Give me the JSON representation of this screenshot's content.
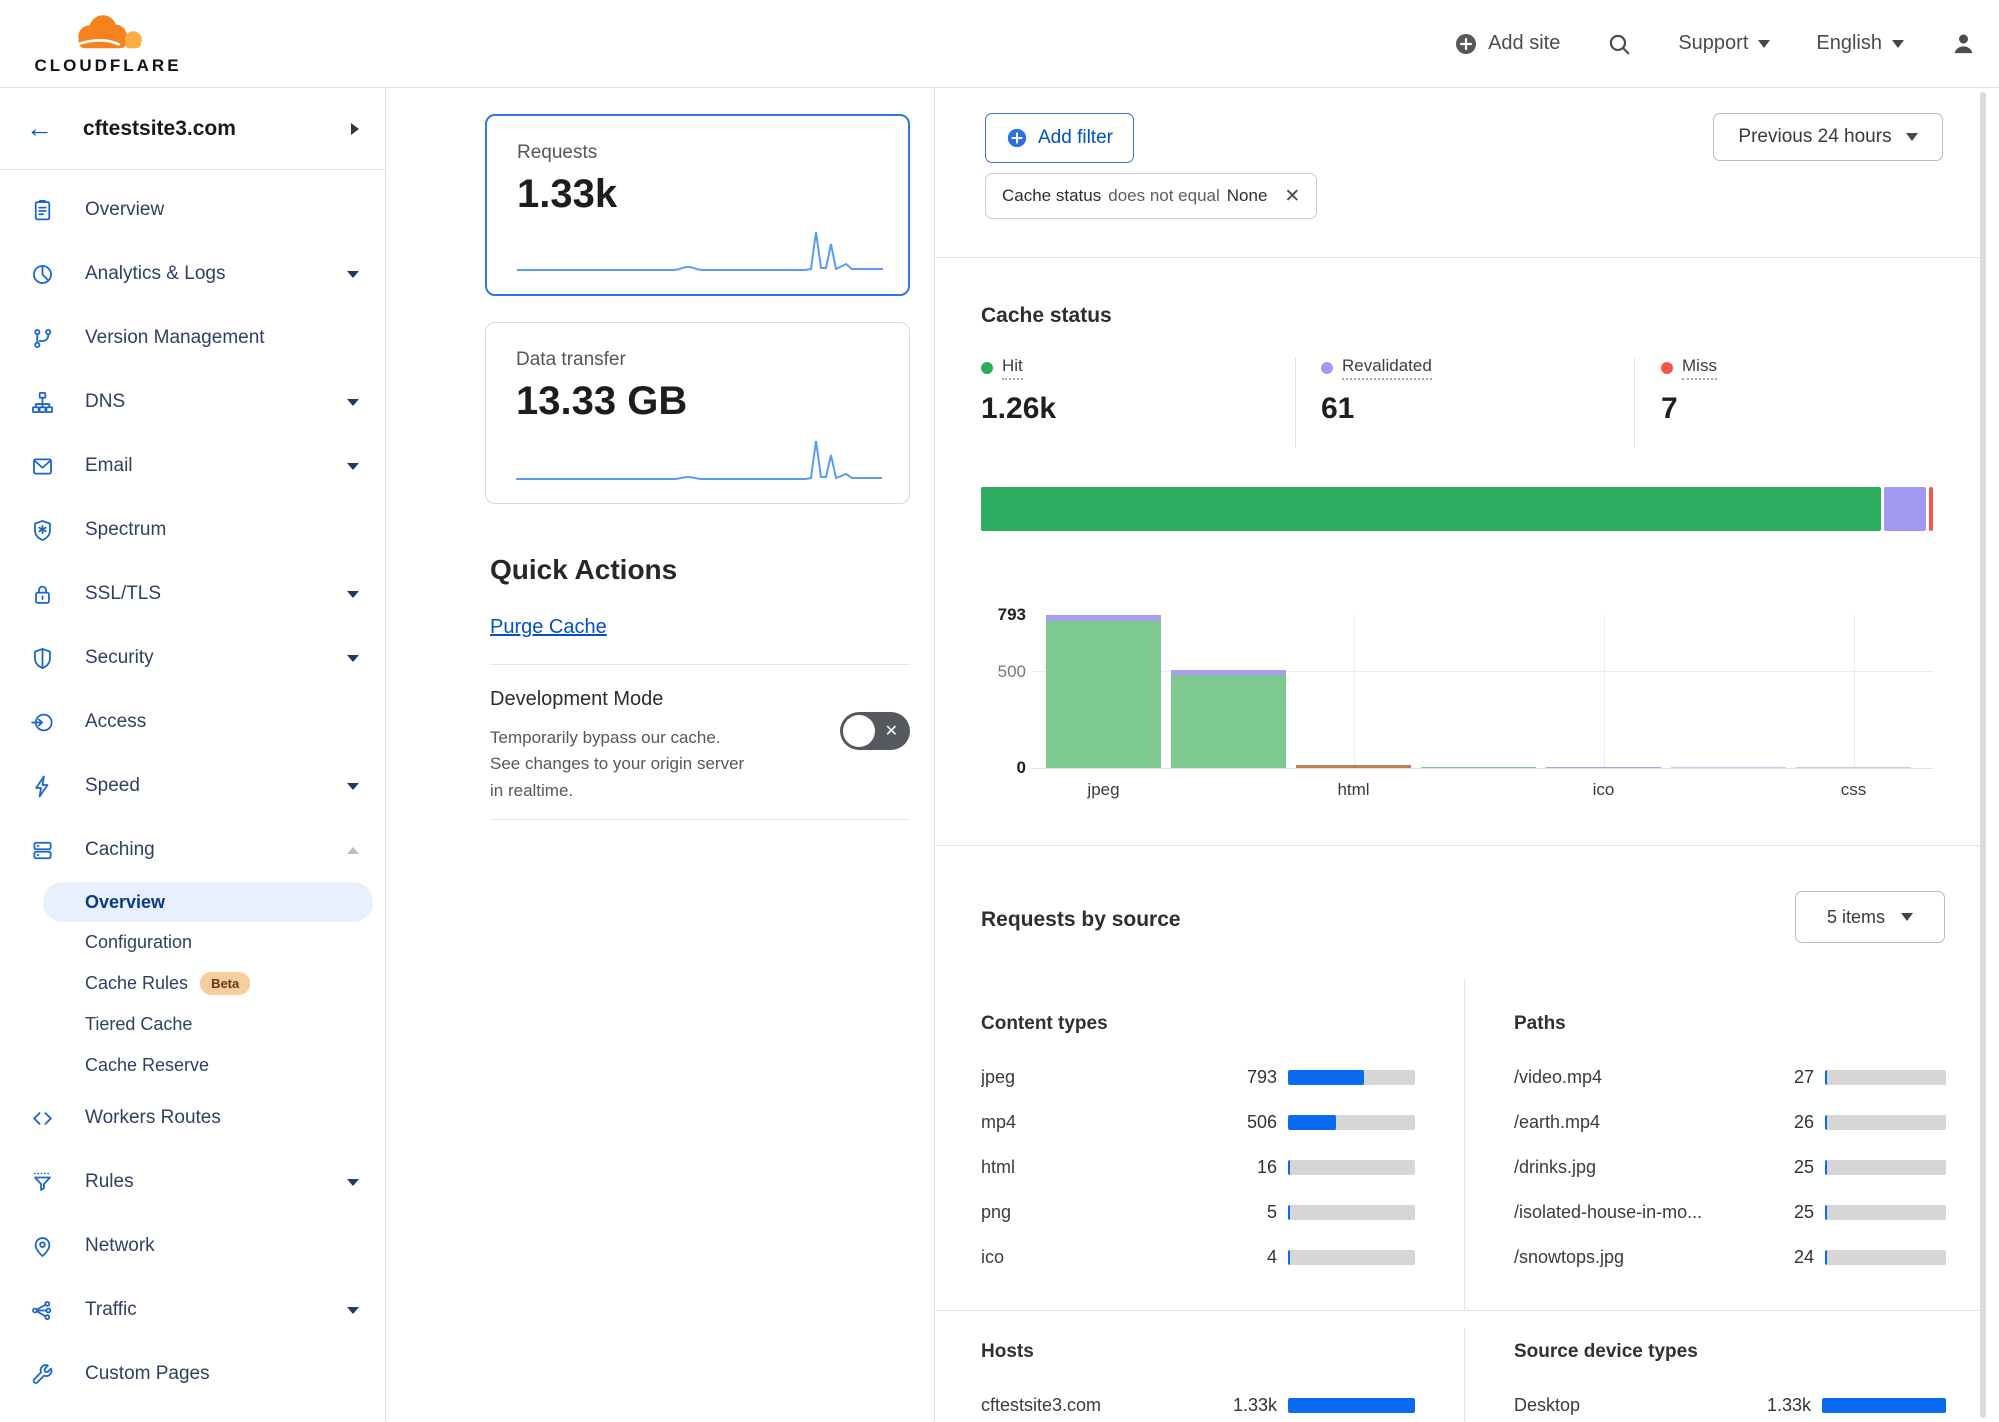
{
  "colors": {
    "accent_blue": "#0051c3",
    "bar_blue": "#0b6bf0",
    "hit_green": "#2dab5e",
    "revalidated_purple": "#a29af0",
    "miss_red": "#f5564a",
    "chart_green": "#7dc98f",
    "chart_purple": "#a79ef0",
    "chart_brown": "#b5835a",
    "brand_orange": "#f6821f"
  },
  "topbar": {
    "logo": "CLOUDFLARE",
    "add_site": "Add site",
    "support": "Support",
    "language": "English"
  },
  "sidebar": {
    "site": "cftestsite3.com",
    "items": [
      {
        "label": "Overview",
        "icon": "overview"
      },
      {
        "label": "Analytics & Logs",
        "icon": "analytics",
        "caret": "down"
      },
      {
        "label": "Version Management",
        "icon": "version"
      },
      {
        "label": "DNS",
        "icon": "dns",
        "caret": "down"
      },
      {
        "label": "Email",
        "icon": "email",
        "caret": "down"
      },
      {
        "label": "Spectrum",
        "icon": "spectrum"
      },
      {
        "label": "SSL/TLS",
        "icon": "ssl",
        "caret": "down"
      },
      {
        "label": "Security",
        "icon": "security",
        "caret": "down"
      },
      {
        "label": "Access",
        "icon": "access"
      },
      {
        "label": "Speed",
        "icon": "speed",
        "caret": "down"
      },
      {
        "label": "Caching",
        "icon": "caching",
        "caret": "up",
        "children": [
          {
            "label": "Overview",
            "selected": true
          },
          {
            "label": "Configuration"
          },
          {
            "label": "Cache Rules",
            "badge": "Beta"
          },
          {
            "label": "Tiered Cache"
          },
          {
            "label": "Cache Reserve"
          }
        ]
      },
      {
        "label": "Workers Routes",
        "icon": "workers"
      },
      {
        "label": "Rules",
        "icon": "rules",
        "caret": "down"
      },
      {
        "label": "Network",
        "icon": "network"
      },
      {
        "label": "Traffic",
        "icon": "traffic",
        "caret": "down"
      },
      {
        "label": "Custom Pages",
        "icon": "custom"
      }
    ]
  },
  "cards": {
    "requests": {
      "label": "Requests",
      "value": "1.33k"
    },
    "data_transfer": {
      "label": "Data transfer",
      "value": "13.33 GB"
    }
  },
  "quick_actions": {
    "title": "Quick Actions",
    "purge_cache": "Purge Cache",
    "dev_mode_title": "Development Mode",
    "dev_mode_desc": "Temporarily bypass our cache. See changes to your origin server in realtime."
  },
  "filter_bar": {
    "add_filter": "Add filter",
    "chip_field": "Cache status",
    "chip_operator": "does not equal",
    "chip_value": "None",
    "time_range": "Previous 24 hours"
  },
  "cache_status": {
    "title": "Cache status",
    "stats": [
      {
        "label": "Hit",
        "value": "1.26k",
        "color": "#2dab5e"
      },
      {
        "label": "Revalidated",
        "value": "61",
        "color": "#a29af0"
      },
      {
        "label": "Miss",
        "value": "7",
        "color": "#f5564a"
      }
    ]
  },
  "chart_data": [
    {
      "type": "bar",
      "subtype": "horizontal-stacked-single",
      "title": "Cache status totals",
      "total": 1328,
      "segments": [
        {
          "name": "Hit",
          "value": 1260,
          "display": "1.26k",
          "color": "#2dab5e"
        },
        {
          "name": "Revalidated",
          "value": 61,
          "display": "61",
          "color": "#a29af0"
        },
        {
          "name": "Miss",
          "value": 7,
          "display": "7",
          "color": "#f5564a"
        }
      ]
    },
    {
      "type": "bar",
      "subtype": "vertical-stacked",
      "title": "Cache status by content type",
      "ylim": [
        0,
        793
      ],
      "yticks": [
        {
          "label": "793",
          "value": 793
        },
        {
          "label": "500",
          "value": 500
        },
        {
          "label": "0",
          "value": 0
        }
      ],
      "grid": true,
      "x_tick_labels": [
        "jpeg",
        "html",
        "ico",
        "css"
      ],
      "bars": [
        {
          "category": "jpeg",
          "label_visible": true,
          "segments": [
            {
              "status": "Hit",
              "value": 760,
              "color": "#7dc98f"
            },
            {
              "status": "Revalidated",
              "value": 33,
              "color": "#a79ef0"
            }
          ]
        },
        {
          "category": "mp4",
          "label_visible": false,
          "segments": [
            {
              "status": "Hit",
              "value": 480,
              "color": "#7dc98f"
            },
            {
              "status": "Revalidated",
              "value": 26,
              "color": "#a79ef0"
            }
          ]
        },
        {
          "category": "html",
          "label_visible": true,
          "segments": [
            {
              "status": "Other",
              "value": 16,
              "color": "#b5835a"
            }
          ]
        },
        {
          "category": "png",
          "label_visible": false,
          "segments": [
            {
              "status": "Hit",
              "value": 5,
              "color": "#7dc98f"
            }
          ]
        },
        {
          "category": "ico",
          "label_visible": true,
          "segments": [
            {
              "status": "Revalidated",
              "value": 4,
              "color": "#a9a2ec"
            }
          ]
        },
        {
          "category": "other",
          "label_visible": false,
          "segments": [
            {
              "status": "Other",
              "value": 2,
              "color": "#bcd0ea"
            }
          ]
        },
        {
          "category": "css",
          "label_visible": true,
          "segments": [
            {
              "status": "Other",
              "value": 1,
              "color": "#cccccc"
            }
          ]
        }
      ]
    }
  ],
  "requests_by_source": {
    "title": "Requests by source",
    "items_label": "5 items",
    "content_types": {
      "title": "Content types",
      "rows": [
        {
          "label": "jpeg",
          "value": "793",
          "pct": 59.6
        },
        {
          "label": "mp4",
          "value": "506",
          "pct": 38.0
        },
        {
          "label": "html",
          "value": "16",
          "pct": 1.2
        },
        {
          "label": "png",
          "value": "5",
          "pct": 0.4
        },
        {
          "label": "ico",
          "value": "4",
          "pct": 0.3
        }
      ]
    },
    "paths": {
      "title": "Paths",
      "rows": [
        {
          "label": "/video.mp4",
          "value": "27",
          "pct": 2.0
        },
        {
          "label": "/earth.mp4",
          "value": "26",
          "pct": 2.0
        },
        {
          "label": "/drinks.jpg",
          "value": "25",
          "pct": 1.9
        },
        {
          "label": "/isolated-house-in-mo...",
          "value": "25",
          "pct": 1.9
        },
        {
          "label": "/snowtops.jpg",
          "value": "24",
          "pct": 1.8
        }
      ]
    },
    "hosts": {
      "title": "Hosts",
      "rows": [
        {
          "label": "cftestsite3.com",
          "value": "1.33k",
          "pct": 100
        }
      ]
    },
    "devices": {
      "title": "Source device types",
      "rows": [
        {
          "label": "Desktop",
          "value": "1.33k",
          "pct": 100
        }
      ]
    }
  }
}
